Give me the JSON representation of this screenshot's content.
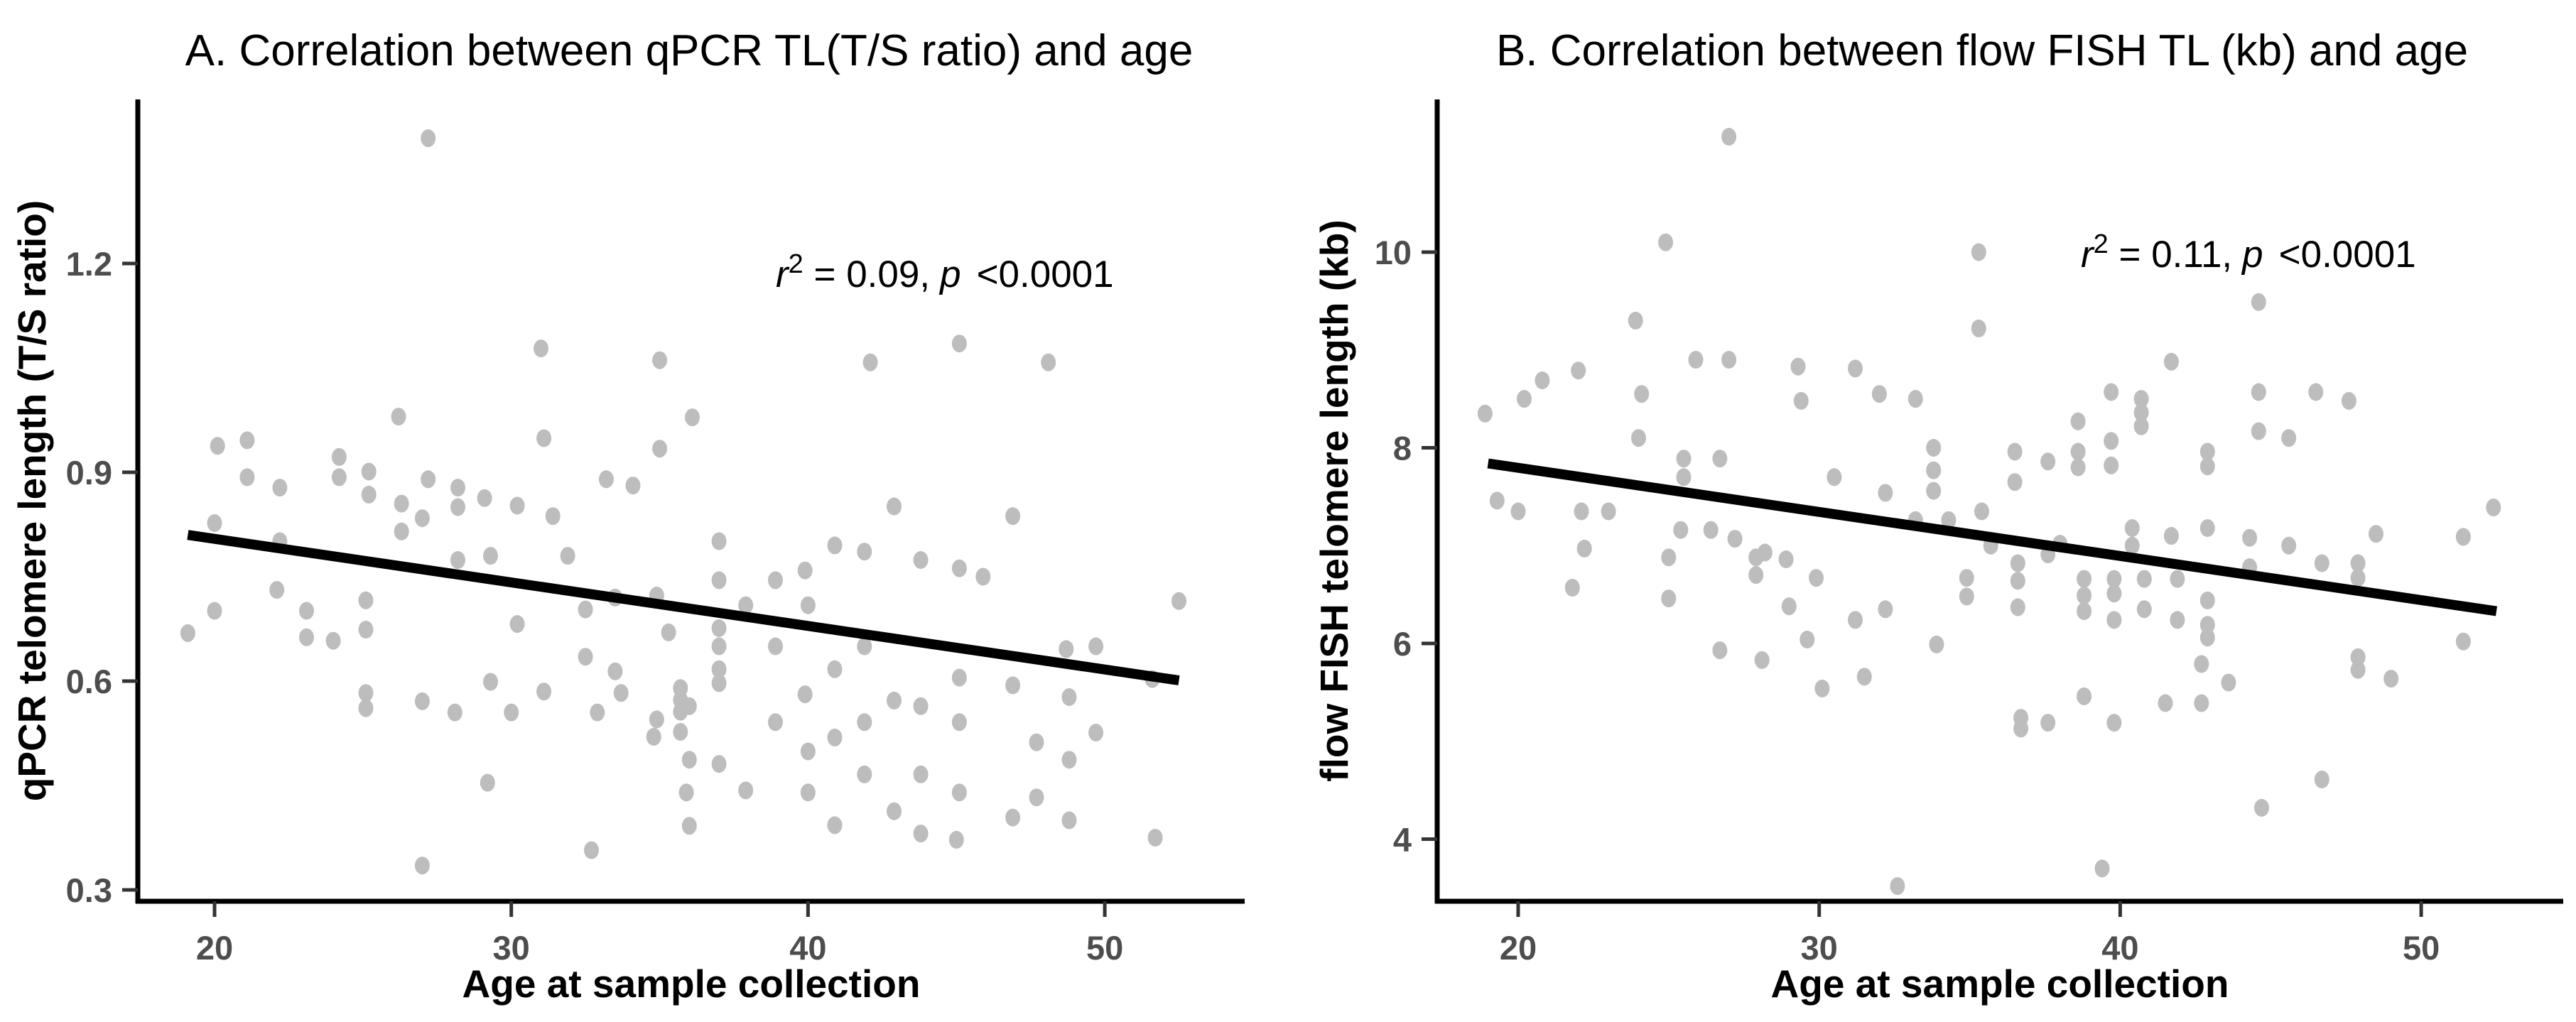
{
  "figure_colors": {
    "point": "#bdbdbd",
    "regression_line": "#000000",
    "tick_text": "#4d4d4d",
    "axis": "#000000",
    "background": "#ffffff"
  },
  "chart_data": [
    {
      "type": "scatter",
      "panel_tag": "A",
      "title": "A. Correlation between qPCR TL(T/S ratio) and age",
      "xlabel": "Age at sample collection",
      "ylabel": "qPCR telomere length (T/S ratio)",
      "annotation": {
        "r_sym": "r",
        "exp": "2",
        "r_rest": " = 0.09,",
        "p_sym": "p",
        "p_rest": "<0.0001",
        "full_text": "r2 = 0.09, p <0.0001"
      },
      "x_ticks": [
        20,
        30,
        40,
        50
      ],
      "y_ticks": [
        0.3,
        0.6,
        0.9,
        1.2
      ],
      "xlim": [
        17.4,
        54.7
      ],
      "ylim": [
        0.28,
        1.44
      ],
      "grid": false,
      "legend": "none",
      "regression": {
        "x1": 19.1,
        "y1": 0.81,
        "x2": 52.5,
        "y2": 0.601
      },
      "points": [
        [
          27.2,
          1.38
        ],
        [
          31.0,
          1.078
        ],
        [
          35.0,
          1.061
        ],
        [
          42.1,
          1.058
        ],
        [
          45.1,
          1.085
        ],
        [
          48.1,
          1.058
        ],
        [
          26.2,
          0.98
        ],
        [
          36.1,
          0.979
        ],
        [
          31.1,
          0.949
        ],
        [
          35.0,
          0.934
        ],
        [
          20.1,
          0.938
        ],
        [
          21.1,
          0.946
        ],
        [
          21.1,
          0.893
        ],
        [
          22.2,
          0.878
        ],
        [
          24.2,
          0.922
        ],
        [
          24.2,
          0.893
        ],
        [
          25.2,
          0.901
        ],
        [
          25.2,
          0.868
        ],
        [
          27.2,
          0.89
        ],
        [
          28.2,
          0.878
        ],
        [
          29.1,
          0.863
        ],
        [
          33.2,
          0.89
        ],
        [
          34.1,
          0.881
        ],
        [
          20.0,
          0.827
        ],
        [
          26.3,
          0.855
        ],
        [
          28.2,
          0.85
        ],
        [
          30.2,
          0.852
        ],
        [
          27.0,
          0.834
        ],
        [
          26.3,
          0.815
        ],
        [
          22.2,
          0.801
        ],
        [
          31.4,
          0.837
        ],
        [
          31.9,
          0.78
        ],
        [
          28.2,
          0.774
        ],
        [
          29.3,
          0.78
        ],
        [
          22.1,
          0.731
        ],
        [
          20.0,
          0.701
        ],
        [
          19.1,
          0.669
        ],
        [
          23.1,
          0.701
        ],
        [
          23.1,
          0.663
        ],
        [
          24.0,
          0.658
        ],
        [
          25.1,
          0.716
        ],
        [
          25.1,
          0.674
        ],
        [
          30.2,
          0.682
        ],
        [
          32.5,
          0.703
        ],
        [
          33.5,
          0.72
        ],
        [
          34.9,
          0.723
        ],
        [
          32.5,
          0.635
        ],
        [
          33.5,
          0.614
        ],
        [
          35.3,
          0.67
        ],
        [
          25.1,
          0.583
        ],
        [
          25.1,
          0.561
        ],
        [
          27.0,
          0.571
        ],
        [
          28.1,
          0.555
        ],
        [
          29.3,
          0.599
        ],
        [
          30.0,
          0.555
        ],
        [
          31.1,
          0.585
        ],
        [
          32.9,
          0.555
        ],
        [
          33.7,
          0.583
        ],
        [
          34.9,
          0.545
        ],
        [
          34.8,
          0.52
        ],
        [
          35.7,
          0.59
        ],
        [
          35.7,
          0.573
        ],
        [
          35.7,
          0.556
        ],
        [
          35.7,
          0.527
        ],
        [
          29.2,
          0.454
        ],
        [
          35.9,
          0.44
        ],
        [
          27.0,
          0.335
        ],
        [
          32.7,
          0.357
        ],
        [
          42.9,
          0.851
        ],
        [
          46.9,
          0.837
        ],
        [
          37.0,
          0.801
        ],
        [
          39.9,
          0.759
        ],
        [
          40.9,
          0.795
        ],
        [
          41.9,
          0.786
        ],
        [
          43.8,
          0.774
        ],
        [
          45.1,
          0.762
        ],
        [
          45.9,
          0.75
        ],
        [
          37.0,
          0.745
        ],
        [
          38.9,
          0.745
        ],
        [
          37.9,
          0.709
        ],
        [
          40.0,
          0.709
        ],
        [
          37.0,
          0.676
        ],
        [
          37.0,
          0.65
        ],
        [
          38.9,
          0.65
        ],
        [
          37.0,
          0.617
        ],
        [
          37.0,
          0.597
        ],
        [
          36.0,
          0.564
        ],
        [
          36.0,
          0.487
        ],
        [
          36.0,
          0.392
        ],
        [
          41.9,
          0.65
        ],
        [
          40.9,
          0.617
        ],
        [
          39.9,
          0.581
        ],
        [
          42.9,
          0.572
        ],
        [
          46.9,
          0.594
        ],
        [
          41.9,
          0.541
        ],
        [
          43.8,
          0.564
        ],
        [
          45.1,
          0.605
        ],
        [
          45.1,
          0.541
        ],
        [
          40.9,
          0.519
        ],
        [
          38.9,
          0.541
        ],
        [
          40.0,
          0.499
        ],
        [
          37.0,
          0.481
        ],
        [
          41.9,
          0.466
        ],
        [
          43.8,
          0.466
        ],
        [
          40.0,
          0.44
        ],
        [
          45.1,
          0.44
        ],
        [
          42.9,
          0.413
        ],
        [
          40.9,
          0.393
        ],
        [
          46.9,
          0.404
        ],
        [
          43.8,
          0.381
        ],
        [
          45.0,
          0.372
        ],
        [
          37.9,
          0.443
        ],
        [
          52.5,
          0.715
        ],
        [
          48.7,
          0.646
        ],
        [
          49.7,
          0.65
        ],
        [
          51.6,
          0.603
        ],
        [
          48.8,
          0.577
        ],
        [
          49.7,
          0.526
        ],
        [
          47.7,
          0.512
        ],
        [
          48.8,
          0.487
        ],
        [
          47.7,
          0.433
        ],
        [
          48.8,
          0.4
        ],
        [
          51.7,
          0.375
        ]
      ]
    },
    {
      "type": "scatter",
      "panel_tag": "B",
      "title": "B. Correlation between flow FISH TL (kb) and age",
      "xlabel": "Age at sample collection",
      "ylabel": "flow FISH telomere length (kb)",
      "annotation": {
        "r_sym": "r",
        "exp": "2",
        "r_rest": " = 0.11,",
        "p_sym": "p",
        "p_rest": "<0.0001",
        "full_text": "r2 = 0.11, p <0.0001"
      },
      "x_ticks": [
        20,
        30,
        40,
        50
      ],
      "y_ticks": [
        4,
        6,
        8,
        10
      ],
      "xlim": [
        17.3,
        54.7
      ],
      "ylim": [
        3.38,
        11.4
      ],
      "grid": false,
      "legend": "none",
      "regression": {
        "x1": 19.0,
        "y1": 7.84,
        "x2": 52.5,
        "y2": 6.33
      },
      "points": [
        [
          27.0,
          11.18
        ],
        [
          24.9,
          10.1
        ],
        [
          35.3,
          10.0
        ],
        [
          23.9,
          9.3
        ],
        [
          35.3,
          9.22
        ],
        [
          25.9,
          8.9
        ],
        [
          27.0,
          8.9
        ],
        [
          29.3,
          8.83
        ],
        [
          31.2,
          8.81
        ],
        [
          22.0,
          8.79
        ],
        [
          20.8,
          8.69
        ],
        [
          20.2,
          8.5
        ],
        [
          24.1,
          8.55
        ],
        [
          32.0,
          8.55
        ],
        [
          33.2,
          8.5
        ],
        [
          29.4,
          8.48
        ],
        [
          18.9,
          8.35
        ],
        [
          24.0,
          8.1
        ],
        [
          25.5,
          7.89
        ],
        [
          26.7,
          7.89
        ],
        [
          25.5,
          7.7
        ],
        [
          30.5,
          7.7
        ],
        [
          33.8,
          8.0
        ],
        [
          33.8,
          7.77
        ],
        [
          33.8,
          7.56
        ],
        [
          32.2,
          7.54
        ],
        [
          33.2,
          7.26
        ],
        [
          34.3,
          7.26
        ],
        [
          35.4,
          7.35
        ],
        [
          35.7,
          7.0
        ],
        [
          20.0,
          7.35
        ],
        [
          19.3,
          7.46
        ],
        [
          22.1,
          7.35
        ],
        [
          23.0,
          7.35
        ],
        [
          25.4,
          7.16
        ],
        [
          26.4,
          7.16
        ],
        [
          27.2,
          7.07
        ],
        [
          22.2,
          6.97
        ],
        [
          28.2,
          6.93
        ],
        [
          44.6,
          9.49
        ],
        [
          41.7,
          8.88
        ],
        [
          39.7,
          8.57
        ],
        [
          44.6,
          8.57
        ],
        [
          46.5,
          8.57
        ],
        [
          47.6,
          8.48
        ],
        [
          40.7,
          8.5
        ],
        [
          40.7,
          8.36
        ],
        [
          40.7,
          8.22
        ],
        [
          38.6,
          8.27
        ],
        [
          39.7,
          8.07
        ],
        [
          44.6,
          8.17
        ],
        [
          45.6,
          8.1
        ],
        [
          36.5,
          7.96
        ],
        [
          36.5,
          7.65
        ],
        [
          37.6,
          7.86
        ],
        [
          38.6,
          7.96
        ],
        [
          38.6,
          7.8
        ],
        [
          39.7,
          7.82
        ],
        [
          42.9,
          7.96
        ],
        [
          42.9,
          7.81
        ],
        [
          40.4,
          7.18
        ],
        [
          40.4,
          7.0
        ],
        [
          41.7,
          7.1
        ],
        [
          42.9,
          7.18
        ],
        [
          44.3,
          7.08
        ],
        [
          45.6,
          7.0
        ],
        [
          48.5,
          7.12
        ],
        [
          38.0,
          7.02
        ],
        [
          25.0,
          6.88
        ],
        [
          27.9,
          6.88
        ],
        [
          28.9,
          6.86
        ],
        [
          27.9,
          6.7
        ],
        [
          29.9,
          6.67
        ],
        [
          34.9,
          6.67
        ],
        [
          34.9,
          6.48
        ],
        [
          21.8,
          6.57
        ],
        [
          25.0,
          6.46
        ],
        [
          29.0,
          6.38
        ],
        [
          32.2,
          6.35
        ],
        [
          31.2,
          6.24
        ],
        [
          26.7,
          5.93
        ],
        [
          29.6,
          6.04
        ],
        [
          28.1,
          5.83
        ],
        [
          31.5,
          5.66
        ],
        [
          33.9,
          5.99
        ],
        [
          30.1,
          5.54
        ],
        [
          32.6,
          3.52
        ],
        [
          36.6,
          6.82
        ],
        [
          36.6,
          6.64
        ],
        [
          36.6,
          6.37
        ],
        [
          37.6,
          6.91
        ],
        [
          38.8,
          6.66
        ],
        [
          38.8,
          6.49
        ],
        [
          38.8,
          6.33
        ],
        [
          39.8,
          6.66
        ],
        [
          39.8,
          6.51
        ],
        [
          39.8,
          6.24
        ],
        [
          40.8,
          6.66
        ],
        [
          40.8,
          6.35
        ],
        [
          41.9,
          6.66
        ],
        [
          41.9,
          6.24
        ],
        [
          42.9,
          6.44
        ],
        [
          42.9,
          6.19
        ],
        [
          42.9,
          6.06
        ],
        [
          42.7,
          5.79
        ],
        [
          43.6,
          5.6
        ],
        [
          44.3,
          6.78
        ],
        [
          46.7,
          6.82
        ],
        [
          47.9,
          6.82
        ],
        [
          47.9,
          6.67
        ],
        [
          36.7,
          5.24
        ],
        [
          36.7,
          5.13
        ],
        [
          37.6,
          5.19
        ],
        [
          38.8,
          5.46
        ],
        [
          39.8,
          5.19
        ],
        [
          41.5,
          5.39
        ],
        [
          42.7,
          5.39
        ],
        [
          47.9,
          5.86
        ],
        [
          47.9,
          5.73
        ],
        [
          49.0,
          5.64
        ],
        [
          46.7,
          4.61
        ],
        [
          44.7,
          4.32
        ],
        [
          39.4,
          3.7
        ],
        [
          52.4,
          7.39
        ],
        [
          51.4,
          7.09
        ],
        [
          51.4,
          6.02
        ]
      ]
    }
  ]
}
